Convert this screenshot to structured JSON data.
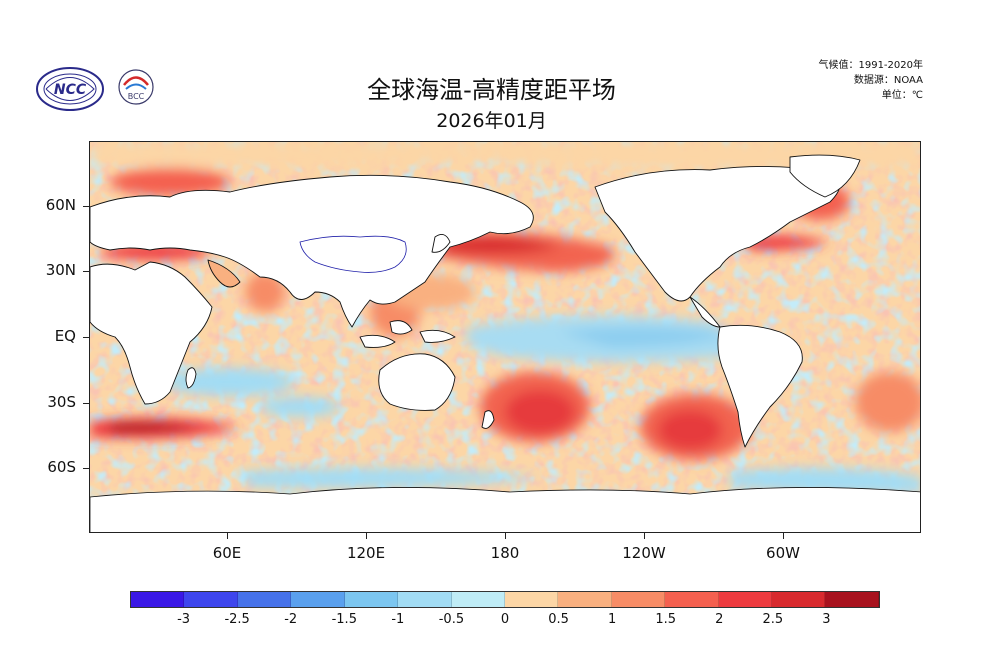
{
  "header": {
    "title": "全球海温-高精度距平场",
    "subtitle": "2026年01月",
    "climatology": "气候值：1991-2020年",
    "source": "数据源：NOAA",
    "unit": "单位：℃"
  },
  "logos": {
    "ncc_text": "NCC",
    "bcc_text": "BCC"
  },
  "axes": {
    "lat_labels": [
      "60N",
      "30N",
      "EQ",
      "30S",
      "60S"
    ],
    "lon_labels": [
      "60E",
      "120E",
      "180",
      "120W",
      "60W"
    ]
  },
  "colors": {
    "land": "#ffffff",
    "coast": "#111111",
    "border": "#2222aa"
  },
  "colorbar": {
    "labels": [
      "-3",
      "-2.5",
      "-2",
      "-1.5",
      "-1",
      "-0.5",
      "0",
      "0.5",
      "1",
      "1.5",
      "2",
      "2.5",
      "3"
    ],
    "colors": [
      "#3a18e6",
      "#3e46ee",
      "#4672ea",
      "#5aa0ee",
      "#7cc6f0",
      "#a2dcf4",
      "#bfecf6",
      "#fcd6a6",
      "#f9b080",
      "#f78c66",
      "#f4604f",
      "#ee3b3f",
      "#d82a2e",
      "#a8121e"
    ]
  }
}
